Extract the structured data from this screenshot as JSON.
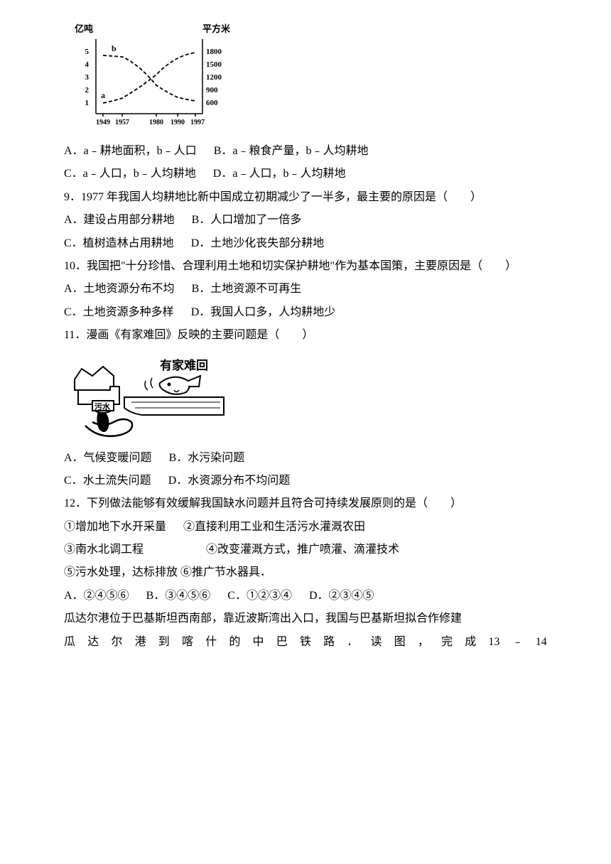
{
  "chart": {
    "type": "line",
    "y_left_label": "亿吨",
    "y_right_label": "平方米",
    "x_ticks": [
      "1949",
      "1957",
      "1980",
      "1990",
      "1997"
    ],
    "y_left_ticks": [
      "1",
      "2",
      "3",
      "4",
      "5"
    ],
    "y_right_ticks": [
      "600",
      "900",
      "1200",
      "1500",
      "1800"
    ],
    "series": [
      {
        "name": "a",
        "label": "a",
        "style": "dashed",
        "color": "#000000",
        "points": [
          {
            "x": 1949,
            "y": 1.0
          },
          {
            "x": 1957,
            "y": 1.3
          },
          {
            "x": 1980,
            "y": 3.2
          },
          {
            "x": 1990,
            "y": 4.4
          },
          {
            "x": 1997,
            "y": 4.9
          }
        ]
      },
      {
        "name": "b",
        "label": "b",
        "style": "dashed",
        "color": "#000000",
        "points": [
          {
            "x": 1949,
            "y": 4.7
          },
          {
            "x": 1957,
            "y": 4.6
          },
          {
            "x": 1980,
            "y": 2.6
          },
          {
            "x": 1990,
            "y": 2.0
          },
          {
            "x": 1997,
            "y": 1.8
          }
        ]
      }
    ],
    "xlim": [
      1949,
      1997
    ],
    "ylim": [
      0.5,
      5.5
    ],
    "line_width": 1.5,
    "axis_color": "#000000",
    "font_size": 11
  },
  "q8_options": {
    "a": "A．a﹣耕地面积，b﹣人口",
    "b": "B．a﹣粮食产量，b﹣人均耕地",
    "c": "C．a﹣人口，b﹣人均耕地",
    "d": "D．a﹣人口，b﹣人均耕地"
  },
  "q9": {
    "stem": "9．1977 年我国人均耕地比新中国成立初期减少了一半多，最主要的原因是（　　）",
    "a": "A．建设占用部分耕地",
    "b": "B．人口增加了一倍多",
    "c": "C．植树造林占用耕地",
    "d": "D．土地沙化丧失部分耕地"
  },
  "q10": {
    "stem": "10．我国把\"十分珍惜、合理利用土地和切实保护耕地\"作为基本国策，主要原因是（　　）",
    "a": "A．土地资源分布不均",
    "b": "B．土地资源不可再生",
    "c": "C．土地资源多种多样",
    "d": "D．我国人口多，人均耕地少"
  },
  "q11": {
    "stem": "11．漫画《有家难回》反映的主要问题是（　　）",
    "cartoon_title": "有家难回",
    "cartoon_label": "污水",
    "a": "A．气候变暖问题",
    "b": "B．水污染问题",
    "c": "C．水土流失问题",
    "d": "D．水资源分布不均问题"
  },
  "q12": {
    "stem": "12．下列做法能够有效缓解我国缺水问题并且符合可持续发展原则的是（　　）",
    "i1": "①增加地下水开采量",
    "i2": "②直接利用工业和生活污水灌溉农田",
    "i3": "③南水北调工程",
    "i4": "④改变灌溉方式，推广喷灌、滴灌技术",
    "i5": "⑤污水处理，达标排放",
    "i6": "⑥推广节水器具．",
    "a": "A．②④⑤⑥",
    "b": "B．③④⑤⑥",
    "c": "C．①②③④",
    "d": "D．②③④⑤"
  },
  "passage": {
    "p1": "瓜达尔港位于巴基斯坦西南部，靠近波斯湾出入口，我国与巴基斯坦拟合作修建",
    "p2_chars": [
      "瓜",
      "达",
      "尔",
      "港",
      "到",
      "喀",
      "什",
      "的",
      "中",
      "巴",
      "铁",
      "路",
      "．",
      "读",
      "图",
      "，",
      "完",
      "成",
      "13",
      "﹣",
      "14"
    ]
  }
}
